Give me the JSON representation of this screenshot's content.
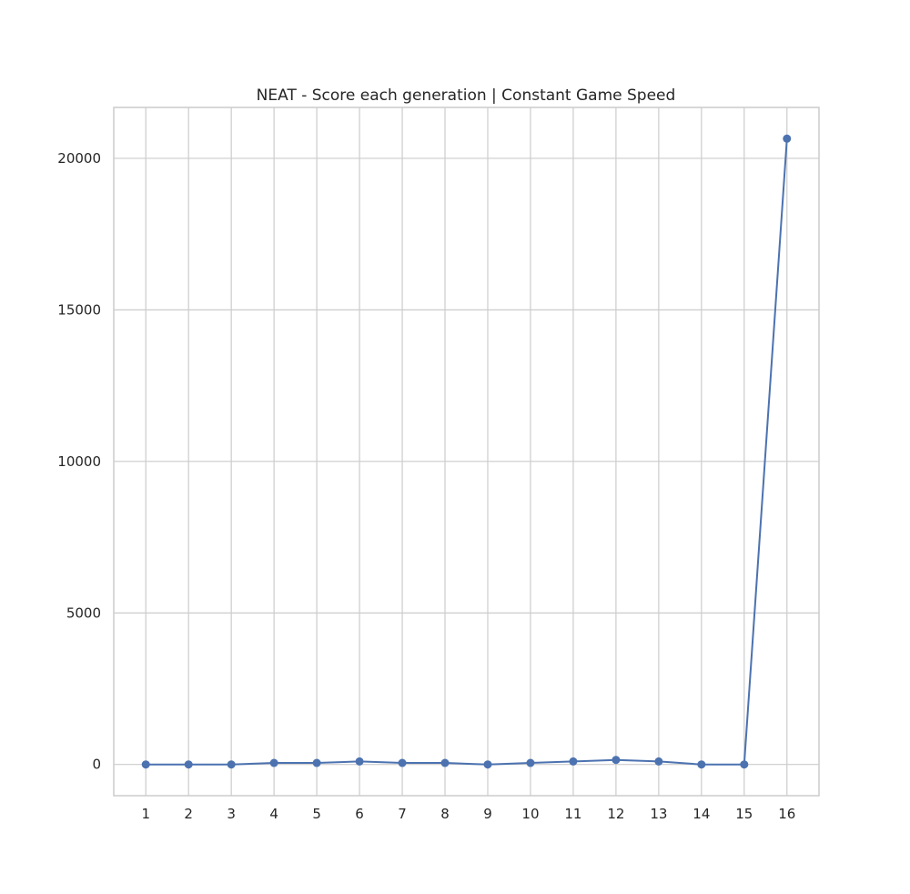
{
  "chart_data": {
    "type": "line",
    "title": "NEAT - Score each generation | Constant Game Speed",
    "xlabel": "",
    "ylabel": "",
    "x": [
      1,
      2,
      3,
      4,
      5,
      6,
      7,
      8,
      9,
      10,
      11,
      12,
      13,
      14,
      15,
      16
    ],
    "series": [
      {
        "values": [
          0,
          0,
          0,
          50,
          50,
          100,
          50,
          50,
          0,
          50,
          100,
          150,
          100,
          0,
          0,
          20650
        ]
      }
    ],
    "xticks": [
      "1",
      "2",
      "3",
      "4",
      "5",
      "6",
      "7",
      "8",
      "9",
      "10",
      "11",
      "12",
      "13",
      "14",
      "15",
      "16"
    ],
    "yticks": [
      "0",
      "5000",
      "10000",
      "15000",
      "20000"
    ],
    "ytick_values": [
      0,
      5000,
      10000,
      15000,
      20000
    ],
    "xlim": [
      0.25,
      16.75
    ],
    "ylim": [
      -1030,
      21680
    ],
    "grid": true,
    "legend": "none",
    "colors": {
      "line": "#4c72b0",
      "grid": "#cccccc",
      "text": "#262626",
      "background": "#ffffff"
    }
  }
}
